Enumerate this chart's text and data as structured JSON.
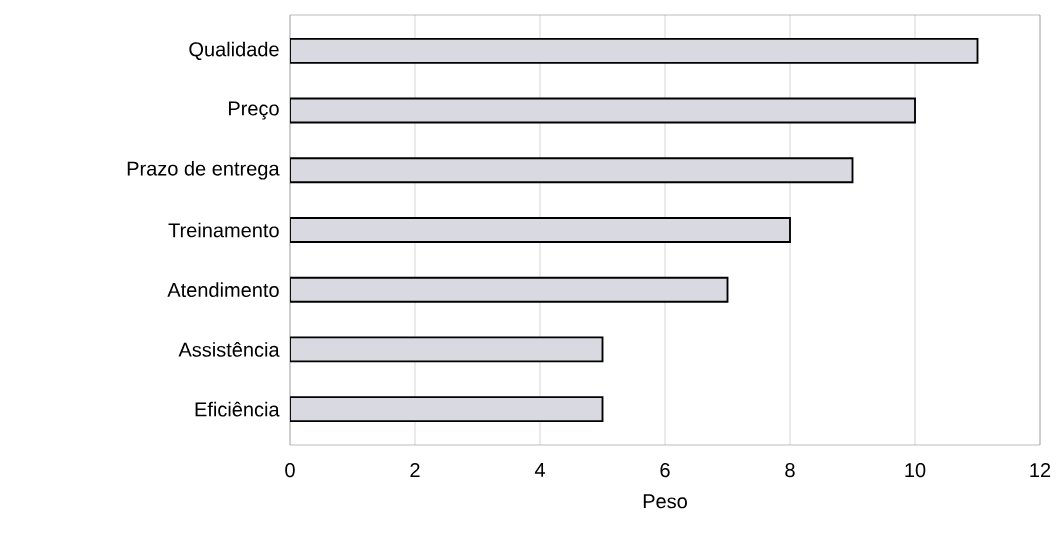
{
  "chart_data": {
    "type": "bar",
    "orientation": "horizontal",
    "xlabel": "Peso",
    "categories": [
      "Qualidade",
      "Preço",
      "Prazo de entrega",
      "Treinamento",
      "Atendimento",
      "Assistência",
      "Eficiência"
    ],
    "values": [
      11,
      10,
      9,
      8,
      7,
      5,
      5
    ],
    "color": "#d9d9e2",
    "xlim": [
      0,
      12
    ],
    "xticks": [
      0,
      2,
      4,
      6,
      8,
      10,
      12
    ],
    "grid": "x"
  }
}
